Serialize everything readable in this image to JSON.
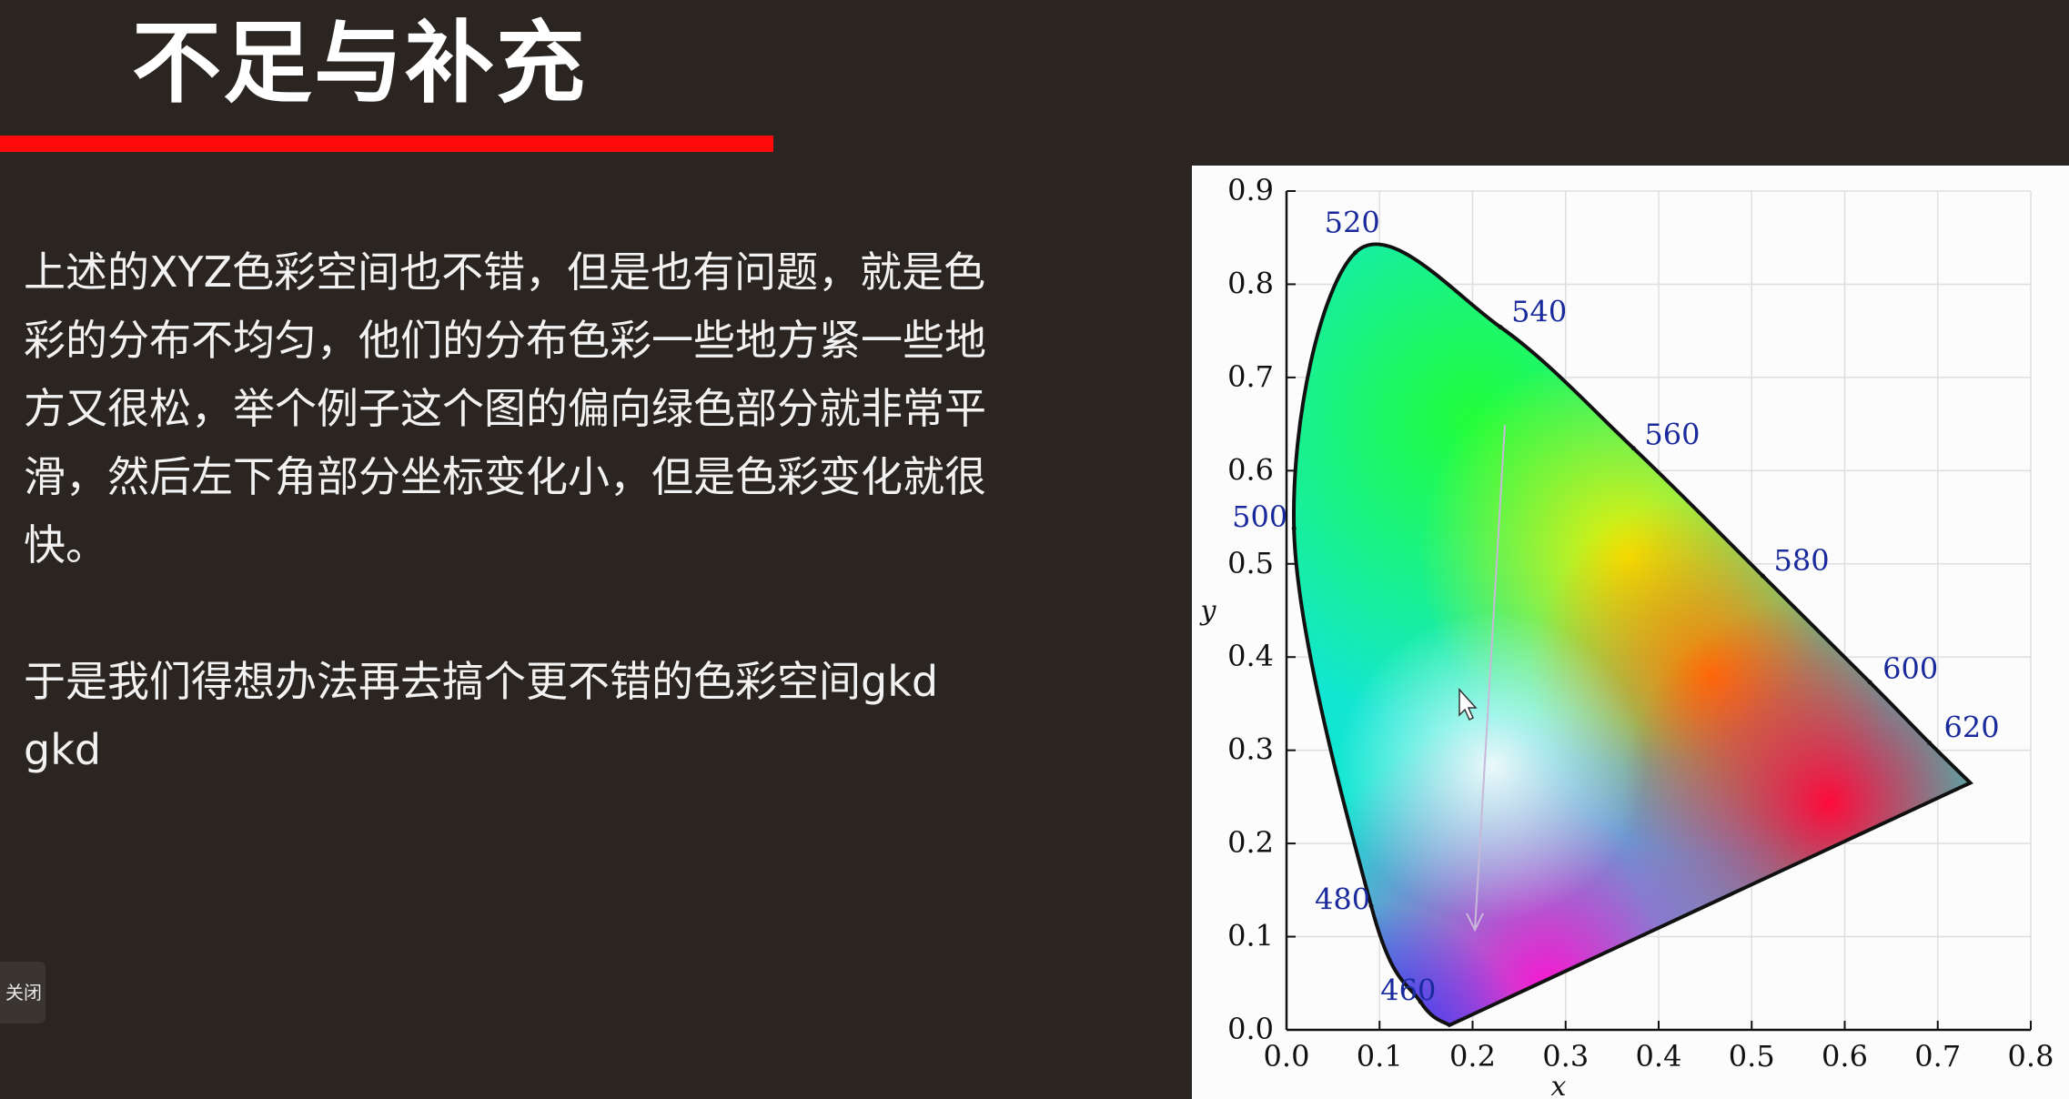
{
  "slide": {
    "title": "不足与补充",
    "paragraph1": "上述的XYZ色彩空间也不错，但是也有问题，就是色彩的分布不均匀，他们的分布色彩一些地方紧一些地方又很松，举个例子这个图的偏向绿色部分就非常平滑，然后左下角部分坐标变化小，但是色彩变化就很快。",
    "paragraph2": "于是我们得想办法再去搞个更不错的色彩空间gkd gkd",
    "close_label": "关闭"
  },
  "colors": {
    "background": "#2a2521",
    "title_underline": "#ff0a0a",
    "wavelength_label": "#1a2a9c"
  },
  "chart_data": {
    "type": "scatter",
    "title": "",
    "xlabel": "x",
    "ylabel": "y",
    "xlim": [
      0.0,
      0.8
    ],
    "ylim": [
      0.0,
      0.9
    ],
    "x_ticks": [
      "0.0",
      "0.1",
      "0.2",
      "0.3",
      "0.4",
      "0.5",
      "0.6",
      "0.7",
      "0.8"
    ],
    "y_ticks": [
      "0.0",
      "0.1",
      "0.2",
      "0.3",
      "0.4",
      "0.5",
      "0.6",
      "0.7",
      "0.8",
      "0.9"
    ],
    "grid": true,
    "series": [
      {
        "points": [
          {
            "label": "460",
            "x": 0.144,
            "y": 0.03
          },
          {
            "label": "480",
            "x": 0.091,
            "y": 0.133
          },
          {
            "label": "500",
            "x": 0.008,
            "y": 0.538
          },
          {
            "label": "520",
            "x": 0.074,
            "y": 0.834
          },
          {
            "label": "540",
            "x": 0.23,
            "y": 0.754
          },
          {
            "label": "560",
            "x": 0.373,
            "y": 0.624
          },
          {
            "label": "580",
            "x": 0.512,
            "y": 0.487
          },
          {
            "label": "600",
            "x": 0.627,
            "y": 0.373
          },
          {
            "label": "620",
            "x": 0.691,
            "y": 0.308
          }
        ]
      }
    ]
  }
}
